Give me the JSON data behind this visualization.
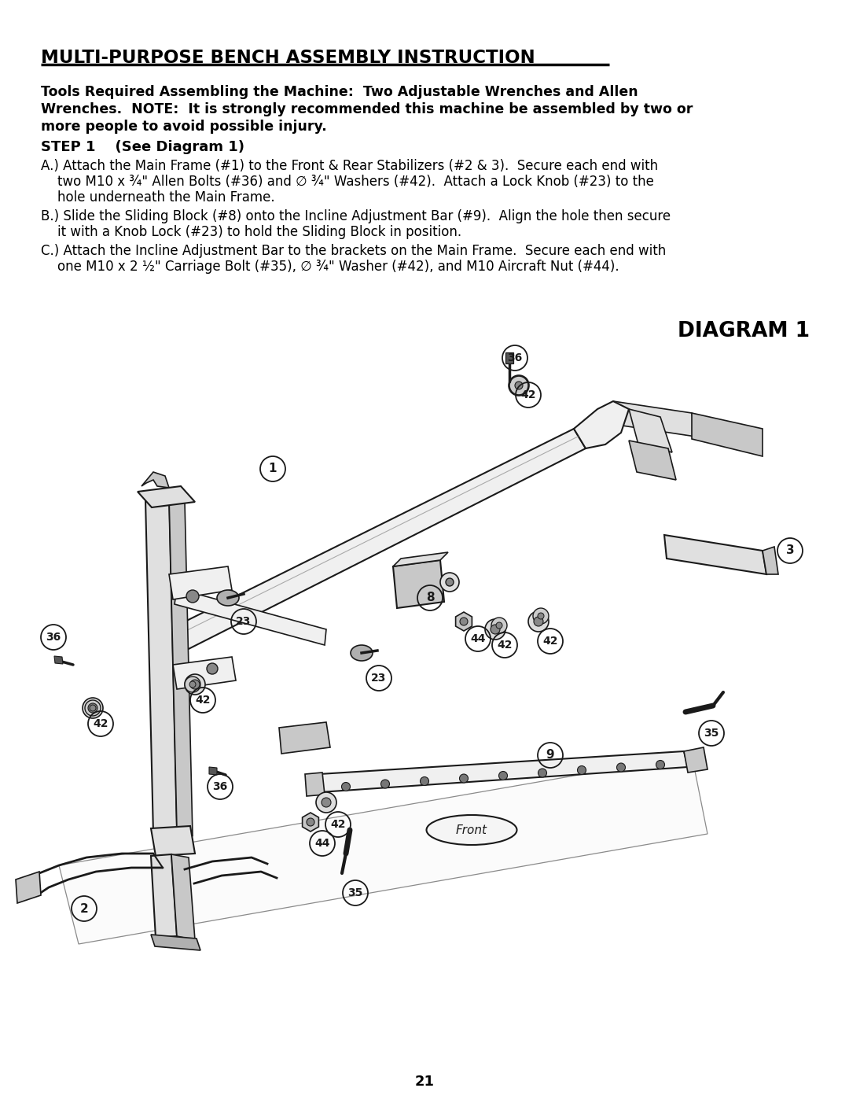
{
  "title": "MULTI-PURPOSE BENCH ASSEMBLY INSTRUCTION",
  "tools_text_line1": "Tools Required Assembling the Machine:  Two Adjustable Wrenches and Allen",
  "tools_text_line2": "Wrenches.  NOTE:  It is strongly recommended this machine be assembled by two or",
  "tools_text_line3": "more people to avoid possible injury.",
  "step1_header": "STEP 1    (See Diagram 1)",
  "step1_a_line1": "A.) Attach the Main Frame (#1) to the Front & Rear Stabilizers (#2 & 3).  Secure each end with",
  "step1_a_line2": "    two M10 x ¾\" Allen Bolts (#36) and ∅ ¾\" Washers (#42).  Attach a Lock Knob (#23) to the",
  "step1_a_line3": "    hole underneath the Main Frame.",
  "step1_b_line1": "B.) Slide the Sliding Block (#8) onto the Incline Adjustment Bar (#9).  Align the hole then secure",
  "step1_b_line2": "    it with a Knob Lock (#23) to hold the Sliding Block in position.",
  "step1_c_line1": "C.) Attach the Incline Adjustment Bar to the brackets on the Main Frame.  Secure each end with",
  "step1_c_line2": "    one M10 x 2 ½\" Carriage Bolt (#35), ∅ ¾\" Washer (#42), and M10 Aircraft Nut (#44).",
  "diagram_title": "DIAGRAM 1",
  "page_number": "21",
  "bg_color": "#ffffff",
  "text_color": "#000000",
  "line_color": "#1a1a1a"
}
